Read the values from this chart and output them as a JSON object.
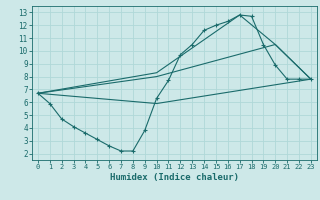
{
  "xlabel": "Humidex (Indice chaleur)",
  "bg_color": "#cde8e8",
  "line_color": "#1a6b6b",
  "grid_color": "#b0d8d8",
  "xlim": [
    -0.5,
    23.5
  ],
  "ylim": [
    1.5,
    13.5
  ],
  "xticks": [
    0,
    1,
    2,
    3,
    4,
    5,
    6,
    7,
    8,
    9,
    10,
    11,
    12,
    13,
    14,
    15,
    16,
    17,
    18,
    19,
    20,
    21,
    22,
    23
  ],
  "yticks": [
    2,
    3,
    4,
    5,
    6,
    7,
    8,
    9,
    10,
    11,
    12,
    13
  ],
  "lines": [
    {
      "x": [
        0,
        1,
        2,
        3,
        4,
        5,
        6,
        7,
        8,
        9,
        10,
        11,
        12,
        13,
        14,
        15,
        16,
        17,
        18,
        19,
        20,
        21,
        22,
        23
      ],
      "y": [
        6.7,
        5.9,
        4.7,
        4.1,
        3.6,
        3.1,
        2.6,
        2.2,
        2.2,
        3.8,
        6.3,
        7.7,
        9.7,
        10.5,
        11.6,
        12.0,
        12.3,
        12.8,
        12.7,
        10.5,
        8.9,
        7.8,
        7.8,
        7.8
      ],
      "marker": true
    },
    {
      "x": [
        0,
        10,
        23
      ],
      "y": [
        6.7,
        5.9,
        7.8
      ],
      "marker": false
    },
    {
      "x": [
        0,
        10,
        20,
        23
      ],
      "y": [
        6.7,
        8.0,
        10.5,
        7.8
      ],
      "marker": false
    },
    {
      "x": [
        0,
        10,
        17,
        20,
        23
      ],
      "y": [
        6.7,
        8.3,
        12.8,
        10.5,
        7.8
      ],
      "marker": false
    }
  ]
}
